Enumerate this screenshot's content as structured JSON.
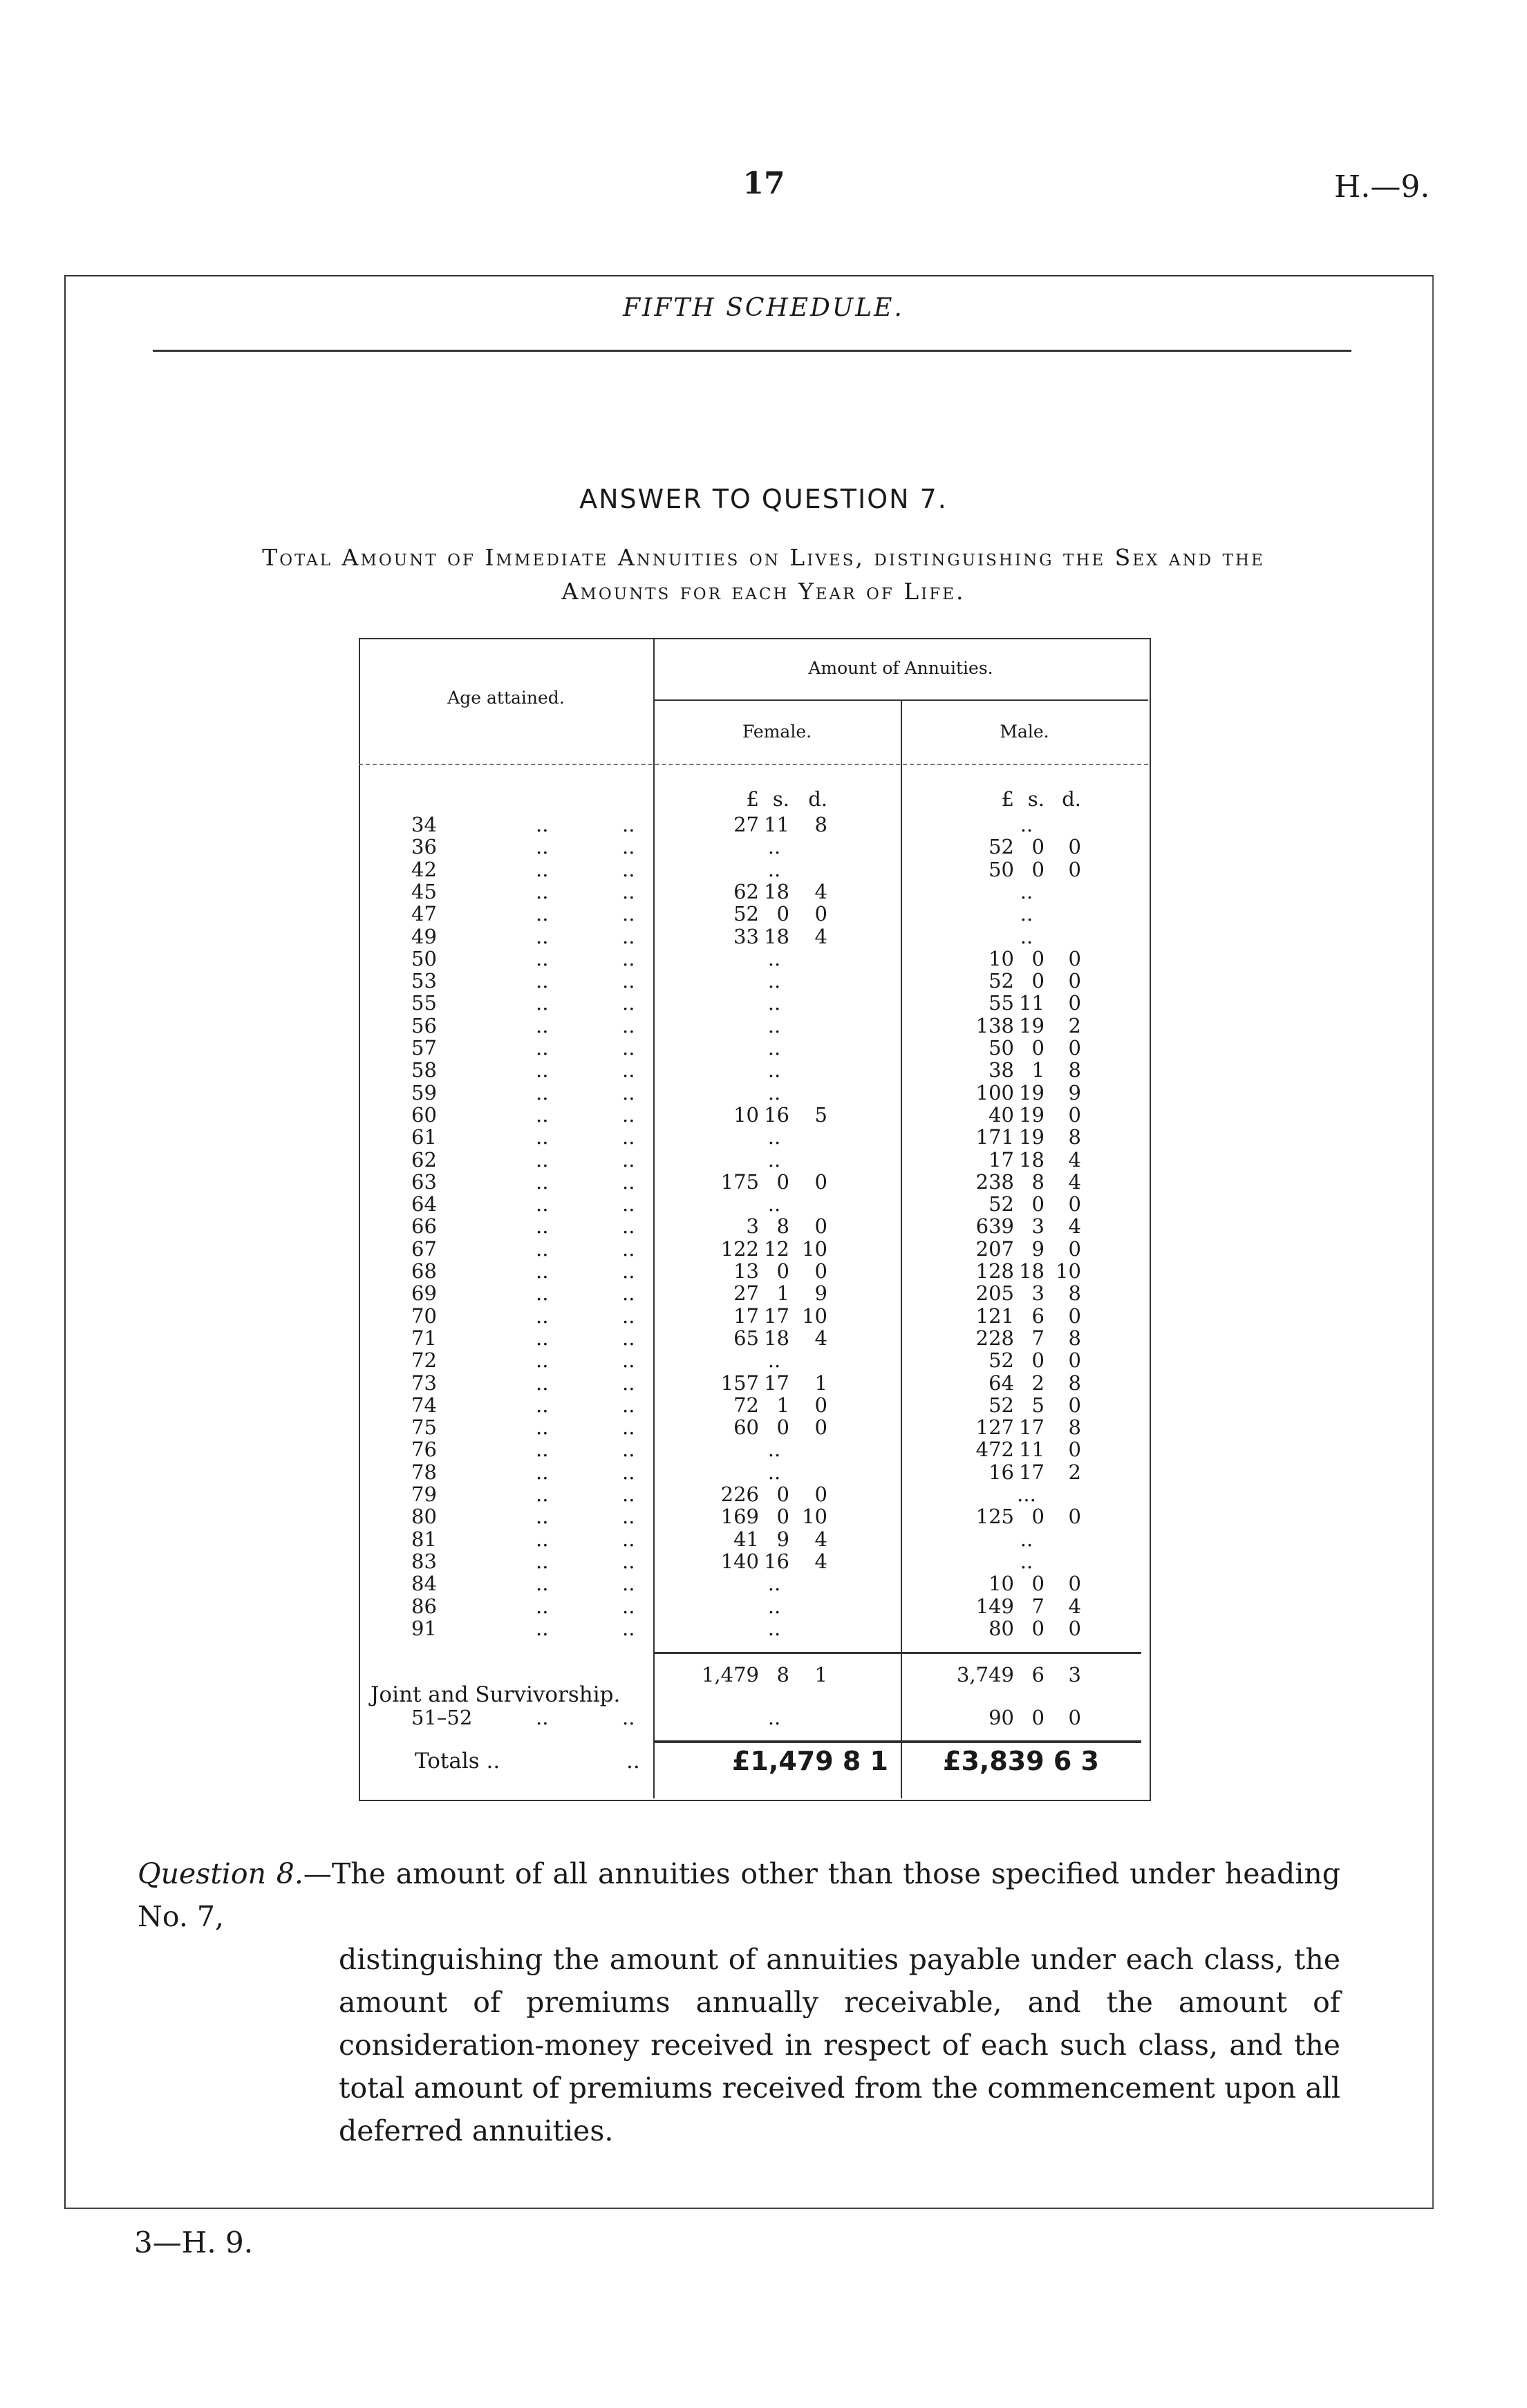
{
  "header": {
    "page_number": "17",
    "doc_code": "H.—9."
  },
  "schedule_title": "FIFTH SCHEDULE.",
  "answer_title": "ANSWER TO QUESTION 7.",
  "subtitle_lines": [
    "Total Amount of Immediate Annuities on Lives, distinguishing the Sex and the",
    "Amounts for each Year of Life."
  ],
  "table": {
    "col_age": "Age attained.",
    "col_group": "Amount of Annuities.",
    "col_female": "Female.",
    "col_male": "Male.",
    "units": [
      "£",
      "s.",
      "d."
    ],
    "dots": "..",
    "rows": [
      {
        "age": "34",
        "female": [
          "27",
          "11",
          "8"
        ],
        "male": ".."
      },
      {
        "age": "36",
        "female": "..",
        "male": [
          "52",
          "0",
          "0"
        ]
      },
      {
        "age": "42",
        "female": "..",
        "male": [
          "50",
          "0",
          "0"
        ]
      },
      {
        "age": "45",
        "female": [
          "62",
          "18",
          "4"
        ],
        "male": ".."
      },
      {
        "age": "47",
        "female": [
          "52",
          "0",
          "0"
        ],
        "male": ".."
      },
      {
        "age": "49",
        "female": [
          "33",
          "18",
          "4"
        ],
        "male": ".."
      },
      {
        "age": "50",
        "female": "..",
        "male": [
          "10",
          "0",
          "0"
        ]
      },
      {
        "age": "53",
        "female": "..",
        "male": [
          "52",
          "0",
          "0"
        ]
      },
      {
        "age": "55",
        "female": "..",
        "male": [
          "55",
          "11",
          "0"
        ]
      },
      {
        "age": "56",
        "female": "..",
        "male": [
          "138",
          "19",
          "2"
        ]
      },
      {
        "age": "57",
        "female": "..",
        "male": [
          "50",
          "0",
          "0"
        ]
      },
      {
        "age": "58",
        "female": "..",
        "male": [
          "38",
          "1",
          "8"
        ]
      },
      {
        "age": "59",
        "female": "..",
        "male": [
          "100",
          "19",
          "9"
        ]
      },
      {
        "age": "60",
        "female": [
          "10",
          "16",
          "5"
        ],
        "male": [
          "40",
          "19",
          "0"
        ]
      },
      {
        "age": "61",
        "female": "..",
        "male": [
          "171",
          "19",
          "8"
        ]
      },
      {
        "age": "62",
        "female": "..",
        "male": [
          "17",
          "18",
          "4"
        ]
      },
      {
        "age": "63",
        "female": [
          "175",
          "0",
          "0"
        ],
        "male": [
          "238",
          "8",
          "4"
        ]
      },
      {
        "age": "64",
        "female": "..",
        "male": [
          "52",
          "0",
          "0"
        ]
      },
      {
        "age": "66",
        "female": [
          "3",
          "8",
          "0"
        ],
        "male": [
          "639",
          "3",
          "4"
        ]
      },
      {
        "age": "67",
        "female": [
          "122",
          "12",
          "10"
        ],
        "male": [
          "207",
          "9",
          "0"
        ]
      },
      {
        "age": "68",
        "female": [
          "13",
          "0",
          "0"
        ],
        "male": [
          "128",
          "18",
          "10"
        ]
      },
      {
        "age": "69",
        "female": [
          "27",
          "1",
          "9"
        ],
        "male": [
          "205",
          "3",
          "8"
        ]
      },
      {
        "age": "70",
        "female": [
          "17",
          "17",
          "10"
        ],
        "male": [
          "121",
          "6",
          "0"
        ]
      },
      {
        "age": "71",
        "female": [
          "65",
          "18",
          "4"
        ],
        "male": [
          "228",
          "7",
          "8"
        ]
      },
      {
        "age": "72",
        "female": "..",
        "male": [
          "52",
          "0",
          "0"
        ]
      },
      {
        "age": "73",
        "female": [
          "157",
          "17",
          "1"
        ],
        "male": [
          "64",
          "2",
          "8"
        ]
      },
      {
        "age": "74",
        "female": [
          "72",
          "1",
          "0"
        ],
        "male": [
          "52",
          "5",
          "0"
        ]
      },
      {
        "age": "75",
        "female": [
          "60",
          "0",
          "0"
        ],
        "male": [
          "127",
          "17",
          "8"
        ]
      },
      {
        "age": "76",
        "female": "..",
        "male": [
          "472",
          "11",
          "0"
        ]
      },
      {
        "age": "78",
        "female": "..",
        "male": [
          "16",
          "17",
          "2"
        ]
      },
      {
        "age": "79",
        "female": [
          "226",
          "0",
          "0"
        ],
        "male": "..."
      },
      {
        "age": "80",
        "female": [
          "169",
          "0",
          "10"
        ],
        "male": [
          "125",
          "0",
          "0"
        ]
      },
      {
        "age": "81",
        "female": [
          "41",
          "9",
          "4"
        ],
        "male": ".."
      },
      {
        "age": "83",
        "female": [
          "140",
          "16",
          "4"
        ],
        "male": ".."
      },
      {
        "age": "84",
        "female": "..",
        "male": [
          "10",
          "0",
          "0"
        ]
      },
      {
        "age": "86",
        "female": "..",
        "male": [
          "149",
          "7",
          "4"
        ]
      },
      {
        "age": "91",
        "female": "..",
        "male": [
          "80",
          "0",
          "0"
        ]
      }
    ],
    "subtotal": {
      "female": [
        "1,479",
        "8",
        "1"
      ],
      "male": [
        "3,749",
        "6",
        "3"
      ]
    },
    "joint_label": "Joint and Survivorship.",
    "joint_row": {
      "age": "51–52",
      "female": "..",
      "male": [
        "90",
        "0",
        "0"
      ]
    },
    "totals": {
      "label": "Totals ..",
      "female": "£1,479 8 1",
      "male": "£3,839 6 3"
    }
  },
  "question8": {
    "label": "Question 8.",
    "text_first": "—The amount of all annuities other than those specified under heading No. 7,",
    "text_rest": "distinguishing the amount of annuities payable under each class, the amount of premiums annually receivable, and the amount of consideration-money received in respect of each such class, and the total amount of premiums received from the commencement upon all deferred annuities."
  },
  "footer": {
    "sheet_mark": "3—H. 9."
  }
}
